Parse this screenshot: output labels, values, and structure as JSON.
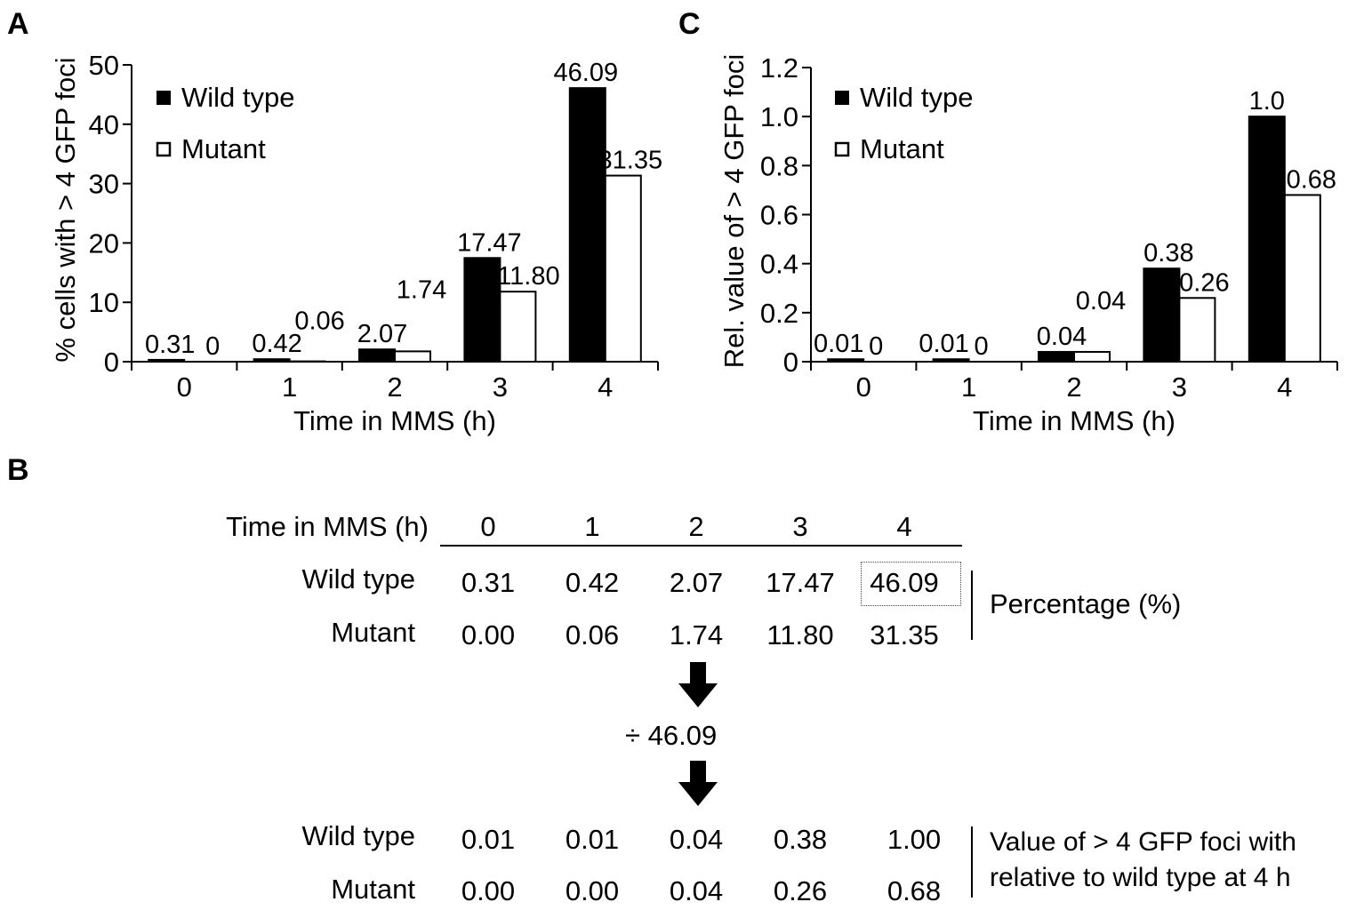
{
  "panels": {
    "a": "A",
    "b": "B",
    "c": "C"
  },
  "chart_data": [
    {
      "type": "bar",
      "xlabel": "Time in MMS (h)",
      "ylabel": "% cells with > 4 GFP foci",
      "categories": [
        "0",
        "1",
        "2",
        "3",
        "4"
      ],
      "ylim": [
        0,
        50
      ],
      "yticks": [
        "0",
        "10",
        "20",
        "30",
        "40",
        "50"
      ],
      "legend_position": "top-left",
      "series": [
        {
          "name": "Wild type",
          "color": "#000000",
          "values": [
            0.31,
            0.42,
            2.07,
            17.47,
            46.09
          ],
          "labels": [
            "0.31",
            "0.42",
            "2.07",
            "17.47",
            "46.09"
          ]
        },
        {
          "name": "Mutant",
          "color": "#ffffff",
          "values": [
            0,
            0.06,
            1.74,
            11.8,
            31.35
          ],
          "labels": [
            "0",
            "0.06",
            "1.74",
            "11.80",
            "31.35"
          ]
        }
      ]
    },
    {
      "type": "bar",
      "xlabel": "Time in MMS (h)",
      "ylabel": "Rel. value of > 4 GFP foci",
      "categories": [
        "0",
        "1",
        "2",
        "3",
        "4"
      ],
      "ylim": [
        0,
        1.2
      ],
      "yticks": [
        "0",
        "0.2",
        "0.4",
        "0.6",
        "0.8",
        "1.0",
        "1.2"
      ],
      "legend_position": "top-left",
      "series": [
        {
          "name": "Wild type",
          "color": "#000000",
          "values": [
            0.01,
            0.01,
            0.04,
            0.38,
            1.0
          ],
          "labels": [
            "0.01",
            "0.01",
            "0.04",
            "0.38",
            "1.0"
          ]
        },
        {
          "name": "Mutant",
          "color": "#ffffff",
          "values": [
            0,
            0,
            0.04,
            0.26,
            0.68
          ],
          "labels": [
            "0",
            "0",
            "0.04",
            "0.26",
            "0.68"
          ]
        }
      ]
    }
  ],
  "table": {
    "header_label": "Time in MMS (h)",
    "columns": [
      "0",
      "1",
      "2",
      "3",
      "4"
    ],
    "top_rows": [
      {
        "label": "Wild type",
        "values": [
          "0.31",
          "0.42",
          "2.07",
          "17.47",
          "46.09"
        ]
      },
      {
        "label": "Mutant",
        "values": [
          "0.00",
          "0.06",
          "1.74",
          "11.80",
          "31.35"
        ]
      }
    ],
    "top_side_label": "Percentage (%)",
    "divisor": "÷ 46.09",
    "bottom_rows": [
      {
        "label": "Wild type",
        "values": [
          "0.01",
          "0.01",
          "0.04",
          "0.38",
          "1.00"
        ]
      },
      {
        "label": "Mutant",
        "values": [
          "0.00",
          "0.00",
          "0.04",
          "0.26",
          "0.68"
        ]
      }
    ],
    "bottom_side_label_1": "Value of > 4 GFP foci with",
    "bottom_side_label_2": "relative to wild type at 4 h"
  }
}
